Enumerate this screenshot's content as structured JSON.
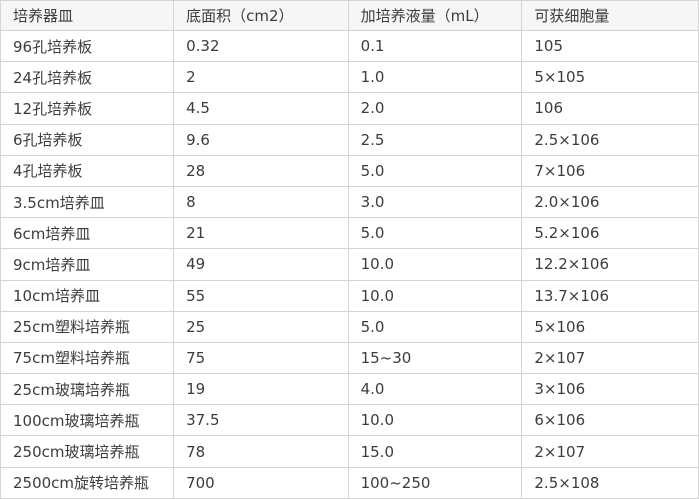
{
  "chart_data": {
    "type": "table",
    "columns": [
      "培养器皿",
      "底面积（cm2）",
      "加培养液量（mL）",
      "可获细胞量"
    ],
    "rows": [
      [
        "96孔培养板",
        "0.32",
        "0.1",
        "105"
      ],
      [
        "24孔培养板",
        "2",
        "1.0",
        "5×105"
      ],
      [
        "12孔培养板",
        "4.5",
        "2.0",
        "106"
      ],
      [
        "6孔培养板",
        "9.6",
        "2.5",
        "2.5×106"
      ],
      [
        "4孔培养板",
        "28",
        "5.0",
        "7×106"
      ],
      [
        "3.5cm培养皿",
        "8",
        "3.0",
        "2.0×106"
      ],
      [
        "6cm培养皿",
        "21",
        "5.0",
        "5.2×106"
      ],
      [
        "9cm培养皿",
        "49",
        "10.0",
        "12.2×106"
      ],
      [
        "10cm培养皿",
        "55",
        "10.0",
        "13.7×106"
      ],
      [
        "25cm塑料培养瓶",
        "25",
        "5.0",
        "5×106"
      ],
      [
        "75cm塑料培养瓶",
        "75",
        "15~30",
        "2×107"
      ],
      [
        "25cm玻璃培养瓶",
        "19",
        "4.0",
        "3×106"
      ],
      [
        "100cm玻璃培养瓶",
        "37.5",
        "10.0",
        "6×106"
      ],
      [
        "250cm玻璃培养瓶",
        "78",
        "15.0",
        "2×107"
      ],
      [
        "2500cm旋转培养瓶",
        "700",
        "100~250",
        "2.5×108"
      ]
    ],
    "layout": {
      "grid": true,
      "header_row": true
    }
  },
  "colors": {
    "border": "#d4d4d4",
    "header_bg": "#f6f6f6",
    "row_bg": "#ffffff",
    "text": "#3c3c3c"
  }
}
